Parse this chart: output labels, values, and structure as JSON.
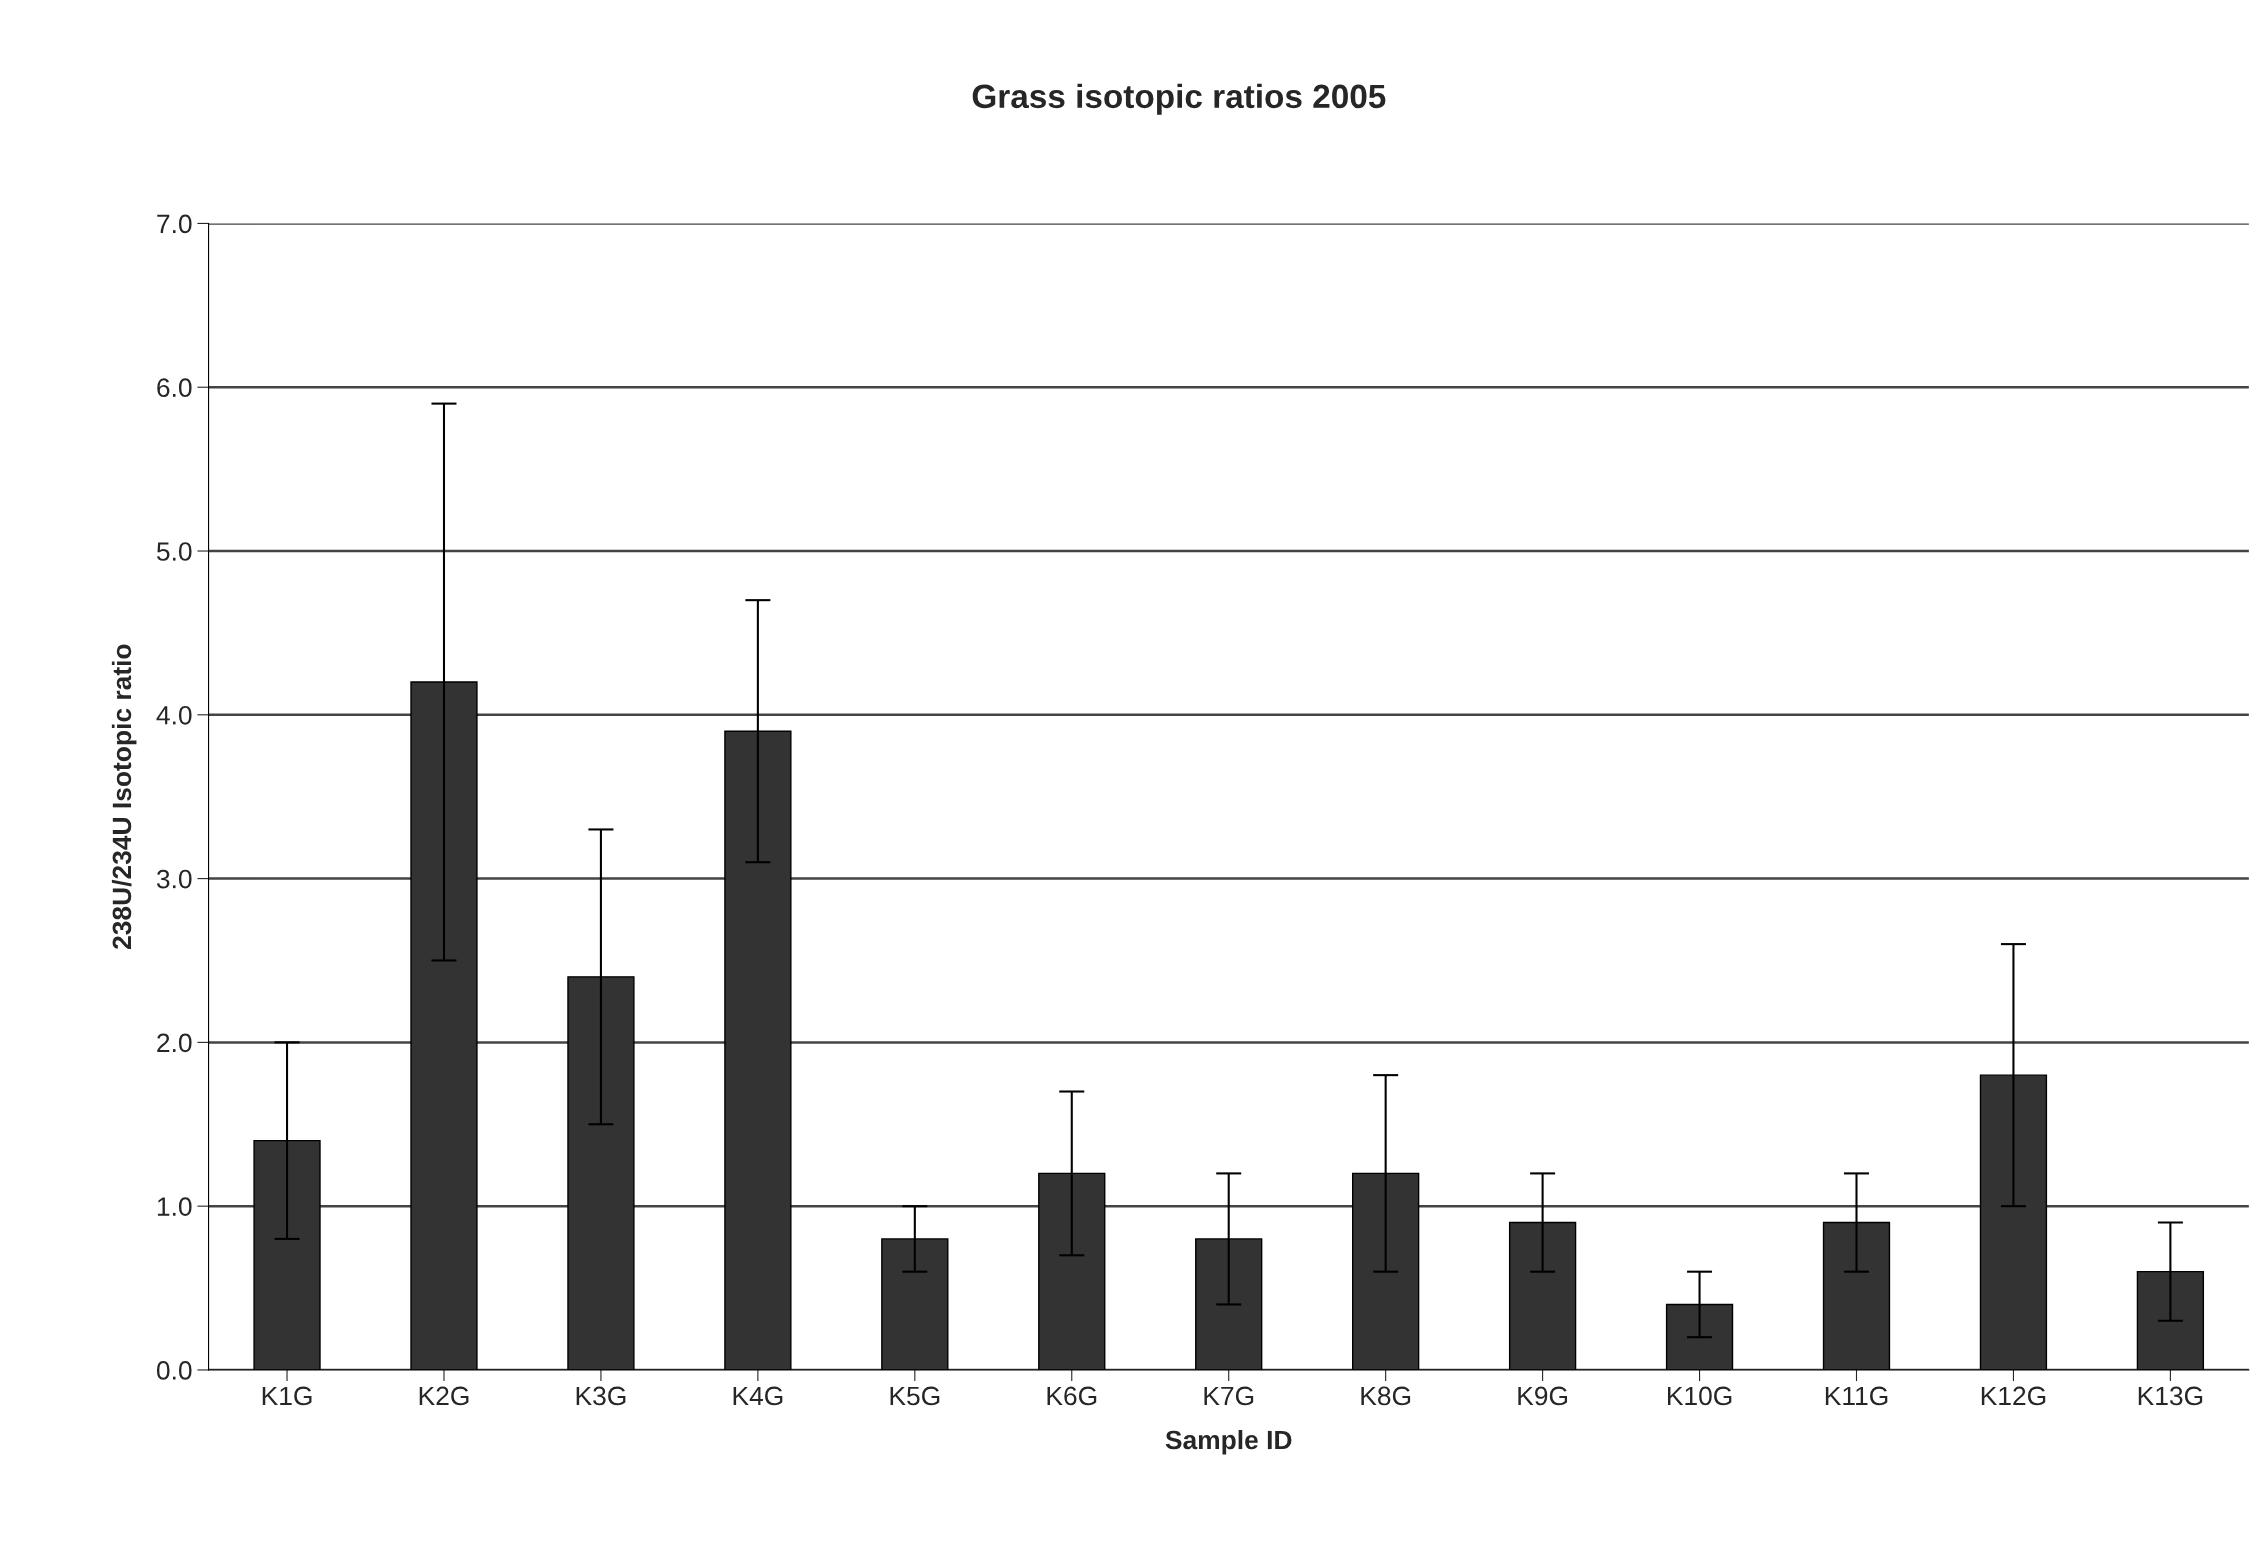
{
  "chart_data": {
    "type": "bar",
    "title": "Grass isotopic ratios 2005",
    "xlabel": "Sample ID",
    "ylabel": "238U/234U Isotopic ratio",
    "categories": [
      "K1G",
      "K2G",
      "K3G",
      "K4G",
      "K5G",
      "K6G",
      "K7G",
      "K8G",
      "K9G",
      "K10G",
      "K11G",
      "K12G",
      "K13G"
    ],
    "values": [
      1.4,
      4.2,
      2.4,
      3.9,
      0.8,
      1.2,
      0.8,
      1.2,
      0.9,
      0.4,
      0.9,
      1.8,
      0.6
    ],
    "errors": [
      0.6,
      1.7,
      0.9,
      0.8,
      0.2,
      0.5,
      0.4,
      0.6,
      0.3,
      0.2,
      0.3,
      0.8,
      0.3
    ],
    "color": "#333333",
    "ylim": [
      0,
      7
    ],
    "yticks": [
      {
        "value": 0,
        "label": "0.0"
      },
      {
        "value": 1,
        "label": "1.0"
      },
      {
        "value": 2,
        "label": "2.0"
      },
      {
        "value": 3,
        "label": "3.0"
      },
      {
        "value": 4,
        "label": "4.0"
      },
      {
        "value": 5,
        "label": "5.0"
      },
      {
        "value": 6,
        "label": "6.0"
      },
      {
        "value": 7,
        "label": "7.0"
      }
    ],
    "grid": "y"
  }
}
